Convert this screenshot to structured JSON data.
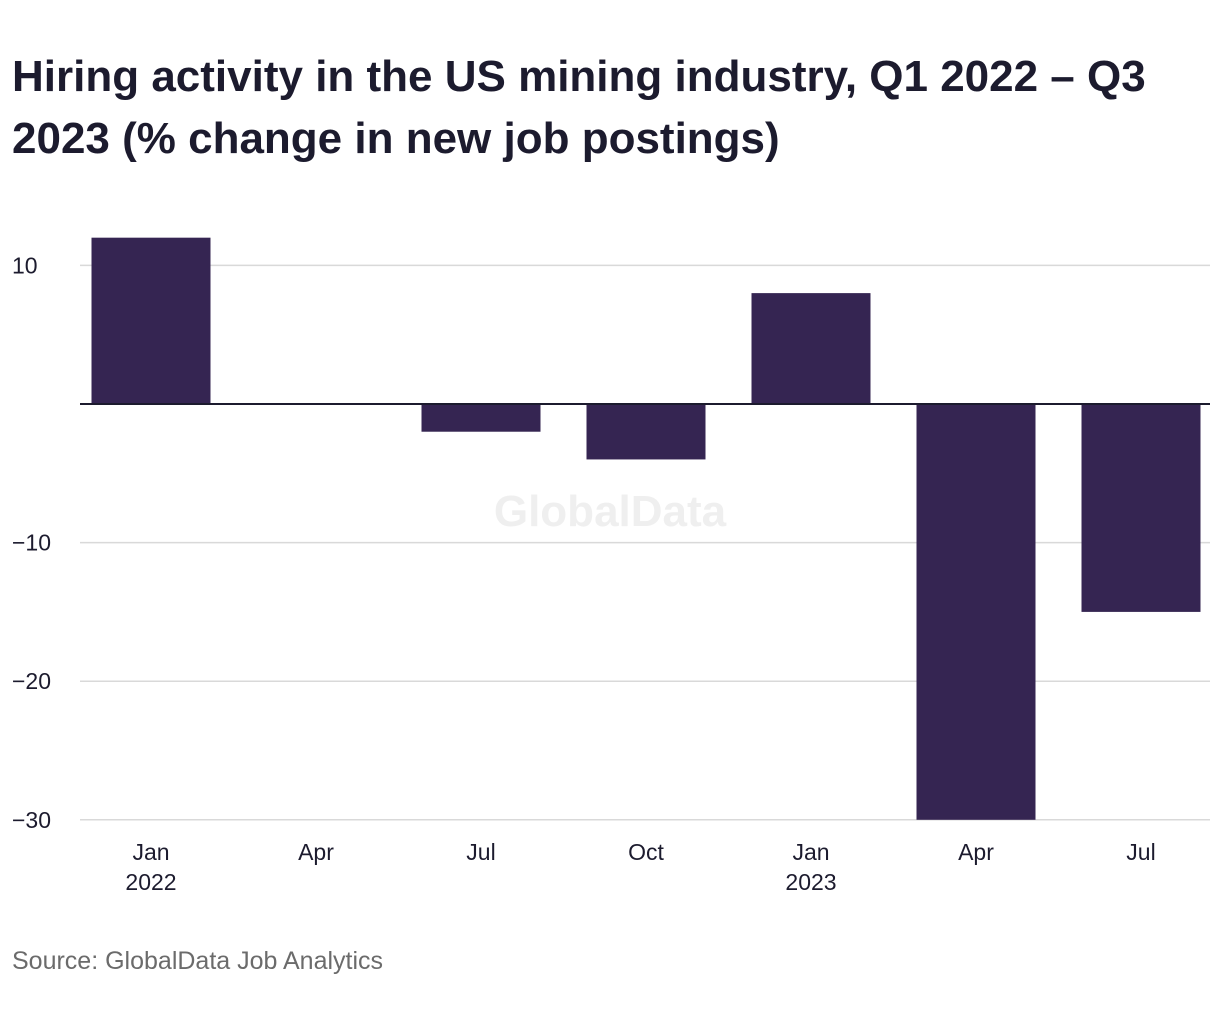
{
  "chart_data": {
    "type": "bar",
    "title": "Hiring activity in the US mining industry, Q1 2022 – Q3 2023 (% change in new job postings)",
    "xlabel": "",
    "ylabel": "",
    "categories": [
      "Jan 2022",
      "Apr 2022",
      "Jul 2022",
      "Oct 2022",
      "Jan 2023",
      "Apr 2023",
      "Jul 2023"
    ],
    "x_tick_labels": [
      {
        "month": "Jan",
        "year": "2022"
      },
      {
        "month": "Apr",
        "year": ""
      },
      {
        "month": "Jul",
        "year": ""
      },
      {
        "month": "Oct",
        "year": ""
      },
      {
        "month": "Jan",
        "year": "2023"
      },
      {
        "month": "Apr",
        "year": ""
      },
      {
        "month": "Jul",
        "year": ""
      }
    ],
    "values": [
      12,
      0,
      -2,
      -4,
      8,
      -30,
      -15
    ],
    "ylim": [
      -30,
      12
    ],
    "y_ticks": [
      10,
      -10,
      -20,
      -30
    ],
    "y_tick_labels": [
      "10",
      "−10",
      "−20",
      "−30"
    ],
    "grid": true,
    "bar_color": "#352552",
    "gridline_color": "#d9d9d9",
    "zero_line_color": "#1c1b2e",
    "watermark": "GlobalData"
  },
  "source": "Source: GlobalData Job Analytics"
}
